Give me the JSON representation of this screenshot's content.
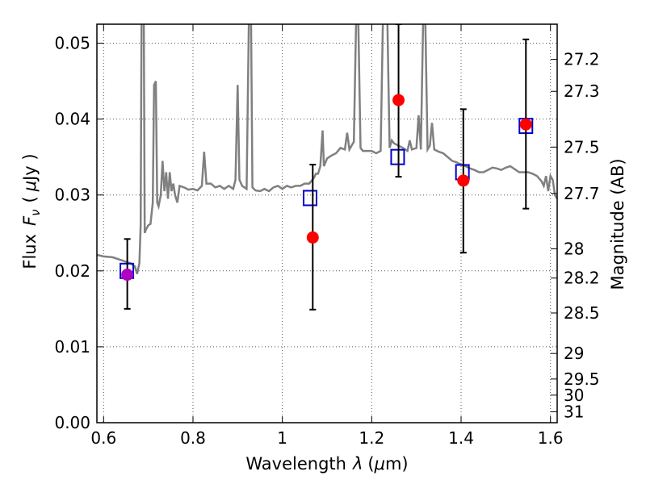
{
  "chart_data": {
    "type": "scatter",
    "xlabel_text": "Wavelength",
    "xlabel_symbol": "λ",
    "xlabel_unit_open": "(",
    "xlabel_unit_mu": "μ",
    "xlabel_unit_rest": "m)",
    "ylabel_text": "Flux",
    "ylabel_symbol": "F",
    "ylabel_sub": "ν",
    "ylabel_unit_open": "(",
    "ylabel_unit_mu": "μ",
    "ylabel_unit_rest": "Jy )",
    "y2label": "Magnitude (AB)",
    "xlim": [
      0.585,
      1.615
    ],
    "ylim": [
      0.0,
      0.0525
    ],
    "grid": true,
    "x_ticks": [
      {
        "v": 0.6,
        "label": "0.6"
      },
      {
        "v": 0.8,
        "label": "0.8"
      },
      {
        "v": 1.0,
        "label": "1"
      },
      {
        "v": 1.2,
        "label": "1.2"
      },
      {
        "v": 1.4,
        "label": "1.4"
      },
      {
        "v": 1.6,
        "label": "1.6"
      }
    ],
    "y_ticks": [
      {
        "v": 0.0,
        "label": "0.00"
      },
      {
        "v": 0.01,
        "label": "0.01"
      },
      {
        "v": 0.02,
        "label": "0.02"
      },
      {
        "v": 0.03,
        "label": "0.03"
      },
      {
        "v": 0.04,
        "label": "0.04"
      },
      {
        "v": 0.05,
        "label": "0.05"
      }
    ],
    "mag_ticks": [
      {
        "v": 27.2,
        "label": "27.2"
      },
      {
        "v": 27.3,
        "label": "27.3"
      },
      {
        "v": 27.5,
        "label": "27.5"
      },
      {
        "v": 27.7,
        "label": "27.7"
      },
      {
        "v": 28.0,
        "label": "28"
      },
      {
        "v": 28.2,
        "label": "28.2"
      },
      {
        "v": 28.5,
        "label": "28.5"
      },
      {
        "v": 29.0,
        "label": "29"
      },
      {
        "v": 29.5,
        "label": "29.5"
      },
      {
        "v": 30.0,
        "label": "30"
      },
      {
        "v": 31.0,
        "label": "31"
      }
    ],
    "mag_zero_point_uJy": 3631000000,
    "observed": [
      {
        "x": 0.653,
        "y": 0.0195,
        "yerr_low": 0.015,
        "yerr_high": 0.0242
      },
      {
        "x": 1.068,
        "y": 0.0244,
        "yerr_low": 0.0149,
        "yerr_high": 0.034
      },
      {
        "x": 1.26,
        "y": 0.0425,
        "yerr_low": 0.0324,
        "yerr_high": 0.0525
      },
      {
        "x": 1.405,
        "y": 0.0319,
        "yerr_low": 0.0224,
        "yerr_high": 0.0413
      },
      {
        "x": 1.545,
        "y": 0.0393,
        "yerr_low": 0.0282,
        "yerr_high": 0.0505
      }
    ],
    "model_bands": [
      {
        "x": 0.652,
        "y": 0.02
      },
      {
        "x": 1.062,
        "y": 0.0296
      },
      {
        "x": 1.258,
        "y": 0.035
      },
      {
        "x": 1.403,
        "y": 0.033
      },
      {
        "x": 1.545,
        "y": 0.0391
      }
    ],
    "spectrum": [
      [
        0.585,
        0.0221
      ],
      [
        0.6,
        0.0219
      ],
      [
        0.62,
        0.0218
      ],
      [
        0.64,
        0.0214
      ],
      [
        0.66,
        0.021
      ],
      [
        0.67,
        0.0206
      ],
      [
        0.675,
        0.0196
      ],
      [
        0.68,
        0.021
      ],
      [
        0.683,
        0.026
      ],
      [
        0.685,
        0.053
      ],
      [
        0.69,
        0.053
      ],
      [
        0.692,
        0.025
      ],
      [
        0.695,
        0.0255
      ],
      [
        0.7,
        0.026
      ],
      [
        0.705,
        0.0262
      ],
      [
        0.71,
        0.029
      ],
      [
        0.713,
        0.0445
      ],
      [
        0.717,
        0.045
      ],
      [
        0.72,
        0.029
      ],
      [
        0.723,
        0.0285
      ],
      [
        0.728,
        0.03
      ],
      [
        0.732,
        0.0345
      ],
      [
        0.736,
        0.0305
      ],
      [
        0.74,
        0.033
      ],
      [
        0.744,
        0.0295
      ],
      [
        0.748,
        0.033
      ],
      [
        0.752,
        0.0305
      ],
      [
        0.756,
        0.0315
      ],
      [
        0.76,
        0.03
      ],
      [
        0.765,
        0.029
      ],
      [
        0.77,
        0.0312
      ],
      [
        0.78,
        0.031
      ],
      [
        0.79,
        0.0307
      ],
      [
        0.8,
        0.0308
      ],
      [
        0.81,
        0.0306
      ],
      [
        0.82,
        0.0312
      ],
      [
        0.825,
        0.0357
      ],
      [
        0.83,
        0.0315
      ],
      [
        0.84,
        0.0315
      ],
      [
        0.85,
        0.031
      ],
      [
        0.86,
        0.0312
      ],
      [
        0.87,
        0.0308
      ],
      [
        0.88,
        0.0312
      ],
      [
        0.89,
        0.0308
      ],
      [
        0.895,
        0.032
      ],
      [
        0.9,
        0.0445
      ],
      [
        0.904,
        0.032
      ],
      [
        0.91,
        0.0312
      ],
      [
        0.915,
        0.031
      ],
      [
        0.92,
        0.0308
      ],
      [
        0.925,
        0.053
      ],
      [
        0.93,
        0.053
      ],
      [
        0.933,
        0.031
      ],
      [
        0.94,
        0.0306
      ],
      [
        0.95,
        0.0305
      ],
      [
        0.96,
        0.0308
      ],
      [
        0.97,
        0.0305
      ],
      [
        0.98,
        0.031
      ],
      [
        0.99,
        0.0312
      ],
      [
        1.0,
        0.0308
      ],
      [
        1.01,
        0.0312
      ],
      [
        1.02,
        0.031
      ],
      [
        1.03,
        0.0312
      ],
      [
        1.04,
        0.0312
      ],
      [
        1.05,
        0.0315
      ],
      [
        1.06,
        0.0315
      ],
      [
        1.07,
        0.0322
      ],
      [
        1.075,
        0.0328
      ],
      [
        1.08,
        0.0328
      ],
      [
        1.085,
        0.0338
      ],
      [
        1.09,
        0.0385
      ],
      [
        1.093,
        0.0338
      ],
      [
        1.1,
        0.0348
      ],
      [
        1.11,
        0.0352
      ],
      [
        1.12,
        0.0355
      ],
      [
        1.13,
        0.0362
      ],
      [
        1.14,
        0.036
      ],
      [
        1.145,
        0.0382
      ],
      [
        1.15,
        0.036
      ],
      [
        1.16,
        0.037
      ],
      [
        1.165,
        0.053
      ],
      [
        1.17,
        0.053
      ],
      [
        1.175,
        0.0362
      ],
      [
        1.18,
        0.0358
      ],
      [
        1.19,
        0.0358
      ],
      [
        1.2,
        0.0358
      ],
      [
        1.21,
        0.0355
      ],
      [
        1.22,
        0.0358
      ],
      [
        1.225,
        0.053
      ],
      [
        1.235,
        0.053
      ],
      [
        1.24,
        0.0362
      ],
      [
        1.245,
        0.0372
      ],
      [
        1.25,
        0.0368
      ],
      [
        1.26,
        0.0365
      ],
      [
        1.27,
        0.0362
      ],
      [
        1.28,
        0.0358
      ],
      [
        1.285,
        0.0372
      ],
      [
        1.29,
        0.036
      ],
      [
        1.3,
        0.0362
      ],
      [
        1.305,
        0.0405
      ],
      [
        1.31,
        0.036
      ],
      [
        1.315,
        0.053
      ],
      [
        1.32,
        0.053
      ],
      [
        1.325,
        0.036
      ],
      [
        1.33,
        0.0365
      ],
      [
        1.335,
        0.0395
      ],
      [
        1.34,
        0.036
      ],
      [
        1.35,
        0.0357
      ],
      [
        1.36,
        0.0355
      ],
      [
        1.37,
        0.035
      ],
      [
        1.38,
        0.0345
      ],
      [
        1.39,
        0.0343
      ],
      [
        1.4,
        0.034
      ],
      [
        1.41,
        0.0338
      ],
      [
        1.42,
        0.0335
      ],
      [
        1.43,
        0.0333
      ],
      [
        1.44,
        0.033
      ],
      [
        1.45,
        0.033
      ],
      [
        1.46,
        0.0333
      ],
      [
        1.47,
        0.0336
      ],
      [
        1.48,
        0.0335
      ],
      [
        1.49,
        0.0333
      ],
      [
        1.5,
        0.0336
      ],
      [
        1.51,
        0.0338
      ],
      [
        1.52,
        0.0334
      ],
      [
        1.53,
        0.033
      ],
      [
        1.54,
        0.033
      ],
      [
        1.55,
        0.033
      ],
      [
        1.56,
        0.0328
      ],
      [
        1.57,
        0.0325
      ],
      [
        1.58,
        0.0318
      ],
      [
        1.585,
        0.0312
      ],
      [
        1.59,
        0.0325
      ],
      [
        1.595,
        0.0305
      ],
      [
        1.6,
        0.0325
      ],
      [
        1.605,
        0.032
      ],
      [
        1.61,
        0.03
      ],
      [
        1.615,
        0.0295
      ]
    ],
    "colors": {
      "spectrum": "#808080",
      "observed": "#ff0000",
      "model": "#0000cc",
      "errorbar": "#000000",
      "grid": "#555555"
    }
  }
}
